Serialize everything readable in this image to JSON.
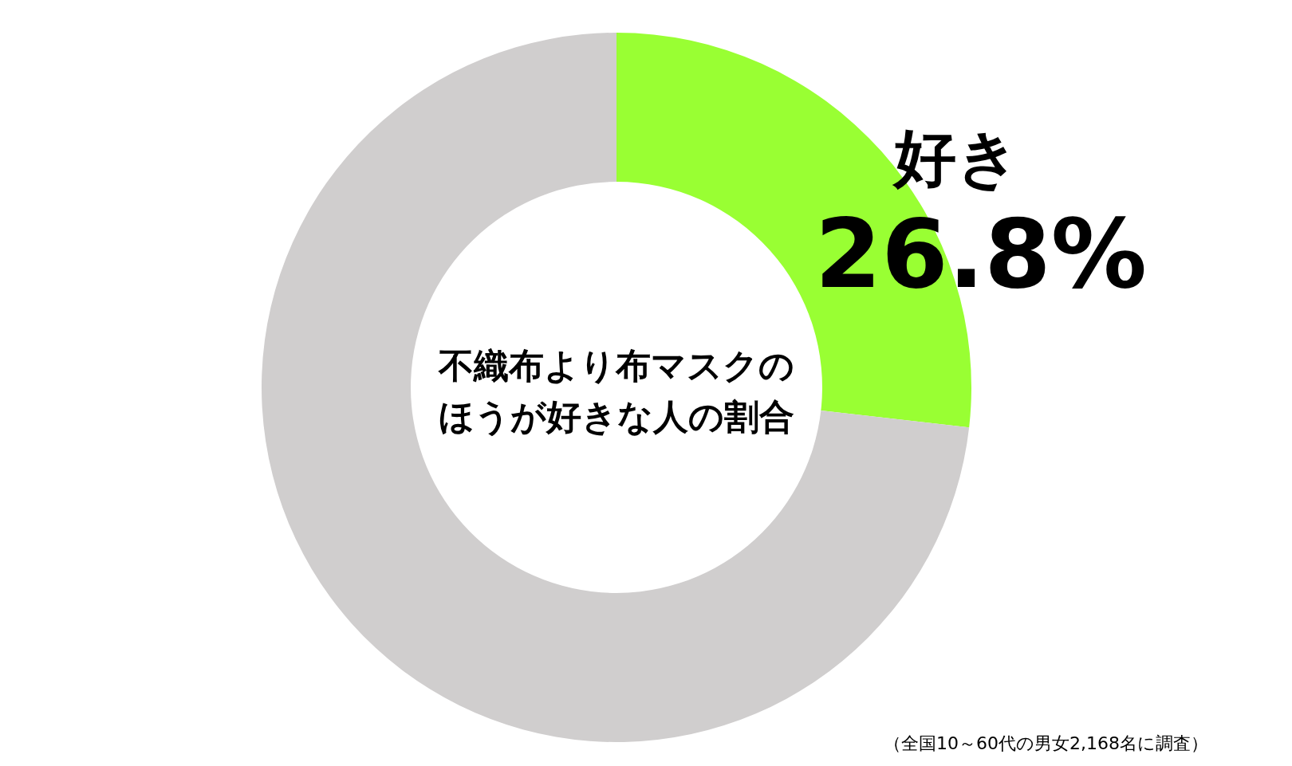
{
  "chart_data": {
    "type": "donut",
    "title": "不織布より布マスクのほうが好きな人の割合",
    "categories": [
      "好き",
      null
    ],
    "values": [
      26.8,
      73.2
    ],
    "colors": [
      "#99ff33",
      "#d0cece"
    ],
    "value_labels": [
      "26.8%",
      null
    ],
    "annotations": [
      "（全国10～60代の男女2,168名に調査）"
    ]
  }
}
